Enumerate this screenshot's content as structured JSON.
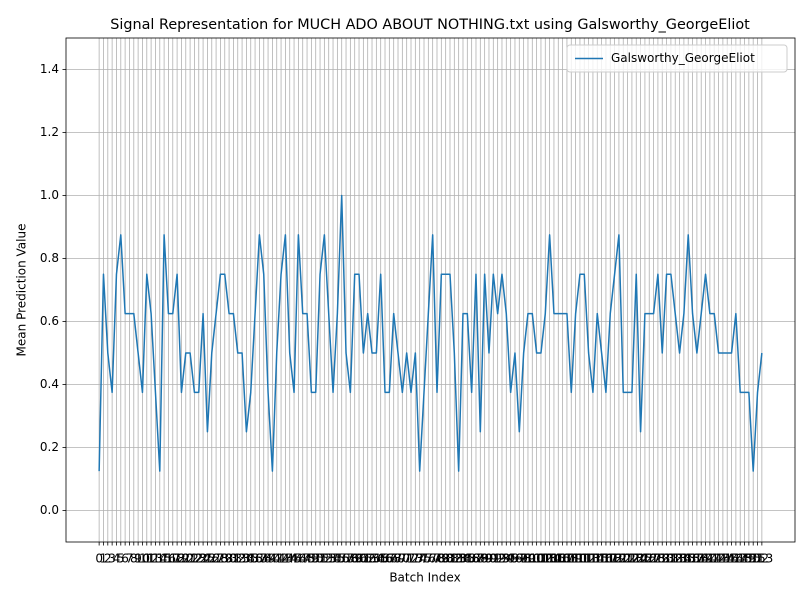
{
  "chart_data": {
    "type": "line",
    "title": "Signal Representation for MUCH ADO ABOUT NOTHING.txt using Galsworthy_GeorgeEliot",
    "xlabel": "Batch Index",
    "ylabel": "Mean Prediction Value",
    "x": [
      0,
      1,
      2,
      3,
      4,
      5,
      6,
      7,
      8,
      9,
      10,
      11,
      12,
      13,
      14,
      15,
      16,
      17,
      18,
      19,
      20,
      21,
      22,
      23,
      24,
      25,
      26,
      27,
      28,
      29,
      30,
      31,
      32,
      33,
      34,
      35,
      36,
      37,
      38,
      39,
      40,
      41,
      42,
      43,
      44,
      45,
      46,
      47,
      48,
      49,
      50,
      51,
      52,
      53,
      54,
      55,
      56,
      57,
      58,
      59,
      60,
      61,
      62,
      63,
      64,
      65,
      66,
      67,
      68,
      69,
      70,
      71,
      72,
      73,
      74,
      75,
      76,
      77,
      78,
      79,
      80,
      81,
      82,
      83,
      84,
      85,
      86,
      87,
      88,
      89,
      90,
      91,
      92,
      93,
      94,
      95,
      96,
      97,
      98,
      99,
      100,
      101,
      102,
      103,
      104,
      105,
      106,
      107,
      108,
      109,
      110,
      111,
      112,
      113,
      114,
      115,
      116,
      117,
      118,
      119,
      120,
      121,
      122,
      123,
      124,
      125,
      126,
      127,
      128,
      129,
      130,
      131,
      132,
      133,
      134,
      135,
      136,
      137,
      138,
      139,
      140,
      141,
      142,
      143,
      144,
      145,
      146,
      147,
      148,
      149,
      150,
      151,
      152,
      153
    ],
    "series": [
      {
        "name": "Galsworthy_GeorgeEliot",
        "color": "#1f77b4",
        "values": [
          0.125,
          0.75,
          0.5,
          0.375,
          0.75,
          0.875,
          0.625,
          0.625,
          0.625,
          0.5,
          0.375,
          0.75,
          0.625,
          0.375,
          0.125,
          0.875,
          0.625,
          0.625,
          0.75,
          0.375,
          0.5,
          0.5,
          0.375,
          0.375,
          0.625,
          0.25,
          0.5,
          0.625,
          0.75,
          0.75,
          0.625,
          0.625,
          0.5,
          0.5,
          0.25,
          0.375,
          0.625,
          0.875,
          0.75,
          0.375,
          0.125,
          0.5,
          0.75,
          0.875,
          0.5,
          0.375,
          0.875,
          0.625,
          0.625,
          0.375,
          0.375,
          0.75,
          0.875,
          0.625,
          0.375,
          0.625,
          1.0,
          0.5,
          0.375,
          0.75,
          0.75,
          0.5,
          0.625,
          0.5,
          0.5,
          0.75,
          0.375,
          0.375,
          0.625,
          0.5,
          0.375,
          0.5,
          0.375,
          0.5,
          0.125,
          0.375,
          0.625,
          0.875,
          0.375,
          0.75,
          0.75,
          0.75,
          0.5,
          0.125,
          0.625,
          0.625,
          0.375,
          0.75,
          0.25,
          0.75,
          0.5,
          0.75,
          0.625,
          0.75,
          0.625,
          0.375,
          0.5,
          0.25,
          0.5,
          0.625,
          0.625,
          0.5,
          0.5,
          0.625,
          0.875,
          0.625,
          0.625,
          0.625,
          0.625,
          0.375,
          0.625,
          0.75,
          0.75,
          0.5,
          0.375,
          0.625,
          0.5,
          0.375,
          0.625,
          0.75,
          0.875,
          0.375,
          0.375,
          0.375,
          0.75,
          0.25,
          0.625,
          0.625,
          0.625,
          0.75,
          0.5,
          0.75,
          0.75,
          0.625,
          0.5,
          0.625,
          0.875,
          0.625,
          0.5,
          0.625,
          0.75,
          0.625,
          0.625,
          0.5,
          0.5,
          0.5,
          0.5,
          0.625,
          0.375,
          0.375,
          0.375,
          0.125,
          0.375,
          0.5
        ]
      }
    ],
    "xlim": [
      -7.65,
      160.65
    ],
    "xticks": [
      0,
      1,
      2,
      3,
      4,
      5,
      6,
      7,
      8,
      9,
      10,
      11,
      12,
      13,
      14,
      15,
      16,
      17,
      18,
      19,
      20,
      21,
      22,
      23,
      24,
      25,
      26,
      27,
      28,
      29,
      30,
      31,
      32,
      33,
      34,
      35,
      36,
      37,
      38,
      39,
      40,
      41,
      42,
      43,
      44,
      45,
      46,
      47,
      48,
      49,
      50,
      51,
      52,
      53,
      54,
      55,
      56,
      57,
      58,
      59,
      60,
      61,
      62,
      63,
      64,
      65,
      66,
      67,
      68,
      69,
      70,
      71,
      72,
      73,
      74,
      75,
      76,
      77,
      78,
      79,
      80,
      81,
      82,
      83,
      84,
      85,
      86,
      87,
      88,
      89,
      90,
      91,
      92,
      93,
      94,
      95,
      96,
      97,
      98,
      99,
      100,
      101,
      102,
      103,
      104,
      105,
      106,
      107,
      108,
      109,
      110,
      111,
      112,
      113,
      114,
      115,
      116,
      117,
      118,
      119,
      120,
      121,
      122,
      123,
      124,
      125,
      126,
      127,
      128,
      129,
      130,
      131,
      132,
      133,
      134,
      135,
      136,
      137,
      138,
      139,
      140,
      141,
      142,
      143,
      144,
      145,
      146,
      147,
      148,
      149,
      150,
      151,
      152,
      153
    ],
    "ylim": [
      -0.1,
      1.5
    ],
    "yticks": [
      {
        "value": 0,
        "label": "0.0"
      },
      {
        "value": 0.2,
        "label": "0.2"
      },
      {
        "value": 0.4,
        "label": "0.4"
      },
      {
        "value": 0.6,
        "label": "0.6"
      },
      {
        "value": 0.8,
        "label": "0.8"
      },
      {
        "value": 1,
        "label": "1.0"
      },
      {
        "value": 1.2,
        "label": "1.2"
      },
      {
        "value": 1.4,
        "label": "1.4"
      }
    ],
    "grid": true,
    "legend": "upper right"
  }
}
